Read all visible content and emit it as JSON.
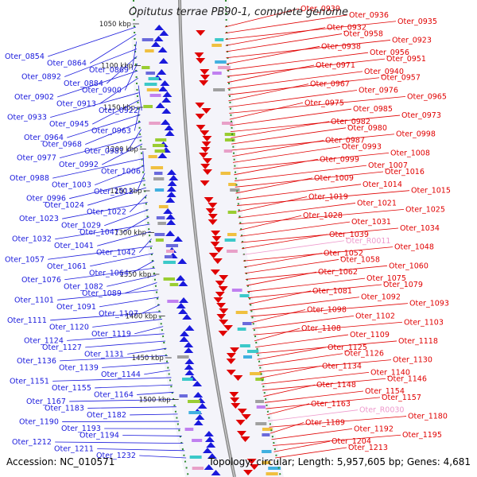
{
  "title": "Opitutus terrae PB90-1, complete genome",
  "accession": "Accession: NC_010571",
  "summary": "Topology: circular; Length: 5,957,605 bp; Genes: 4,681",
  "colors": {
    "left": "#1a1adc",
    "right": "#e00000",
    "rna": "#ee99cc",
    "axis": "#888888",
    "tick": "#2e8b2e"
  },
  "kbp_ticks": [
    "1050 kbp",
    "1100 kbp",
    "1150 kbp",
    "1200 kbp",
    "1250 kbp",
    "1300 kbp",
    "1350 kbp",
    "1400 kbp",
    "1450 kbp",
    "1500 kbp"
  ],
  "left_genes": [
    "Oter_0854",
    "Oter_0864",
    "Oter_0869",
    "Oter_0892",
    "Oter_0884",
    "Oter_0900",
    "Oter_0902",
    "Oter_0913",
    "Oter_0922",
    "Oter_0933",
    "Oter_0945",
    "Oter_0963",
    "Oter_0964",
    "Oter_0968",
    "Oter_0981",
    "Oter_0977",
    "Oter_0992",
    "Oter_1006",
    "Oter_0988",
    "Oter_1003",
    "Oter_1012",
    "Oter_0996",
    "Oter_1024",
    "Oter_1022",
    "Oter_1023",
    "Oter_1029",
    "Oter_1047",
    "Oter_1032",
    "Oter_1041",
    "Oter_1042",
    "Oter_1057",
    "Oter_1061",
    "Oter_1064",
    "Oter_1076",
    "Oter_1082",
    "Oter_1089",
    "Oter_1101",
    "Oter_1091",
    "Oter_1107",
    "Oter_1111",
    "Oter_1120",
    "Oter_1119",
    "Oter_1124",
    "Oter_1127",
    "Oter_1131",
    "Oter_1136",
    "Oter_1139",
    "Oter_1144",
    "Oter_1151",
    "Oter_1155",
    "Oter_1164",
    "Oter_1167",
    "Oter_1183",
    "Oter_1182",
    "Oter_1190",
    "Oter_1193",
    "Oter_1194",
    "Oter_1212",
    "Oter_1211",
    "Oter_1232"
  ],
  "right_genes": [
    "Oter_0939",
    "Oter_0936",
    "Oter_0935",
    "Oter_0932",
    "Oter_0958",
    "Oter_0923",
    "Oter_0938",
    "Oter_0956",
    "Oter_0951",
    "Oter_0971",
    "Oter_0940",
    "Oter_0957",
    "Oter_0967",
    "Oter_0976",
    "Oter_0965",
    "Oter_0975",
    "Oter_0985",
    "Oter_0973",
    "Oter_0982",
    "Oter_0980",
    "Oter_0998",
    "Oter_0987",
    "Oter_0993",
    "Oter_1008",
    "Oter_0999",
    "Oter_1007",
    "Oter_1016",
    "Oter_1009",
    "Oter_1014",
    "Oter_1015",
    "Oter_1019",
    "Oter_1021",
    "Oter_1025",
    "Oter_1028",
    "Oter_1031",
    "Oter_1034",
    "Oter_1039",
    "Oter_R0011",
    "Oter_1048",
    "Oter_1052",
    "Oter_1058",
    "Oter_1060",
    "Oter_1062",
    "Oter_1075",
    "Oter_1079",
    "Oter_1081",
    "Oter_1092",
    "Oter_1093",
    "Oter_1098",
    "Oter_1102",
    "Oter_1103",
    "Oter_1108",
    "Oter_1109",
    "Oter_1118",
    "Oter_1125",
    "Oter_1126",
    "Oter_1130",
    "Oter_1134",
    "Oter_1140",
    "Oter_1146",
    "Oter_1148",
    "Oter_1154",
    "Oter_1157",
    "Oter_1163",
    "Oter_R0030",
    "Oter_1180",
    "Oter_1189",
    "Oter_1192",
    "Oter_1195",
    "Oter_1204",
    "Oter_1213"
  ],
  "rna_genes": [
    "Oter_R0011",
    "Oter_R0030"
  ]
}
